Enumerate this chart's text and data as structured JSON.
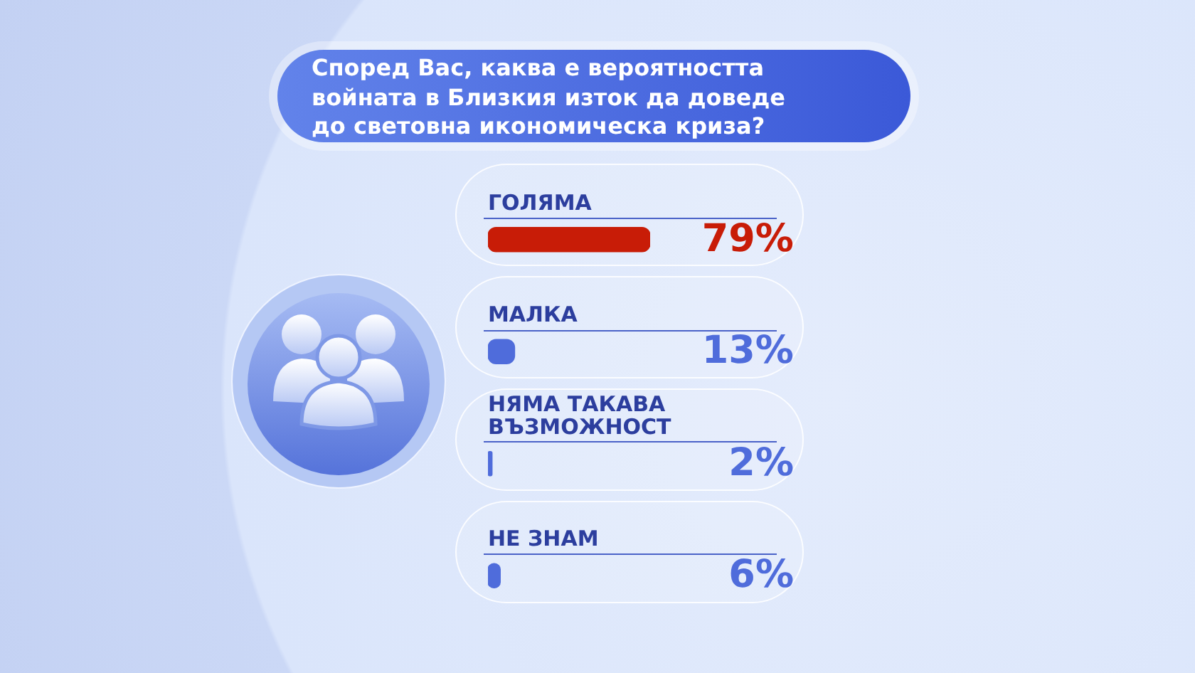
{
  "chart_data": {
    "type": "bar",
    "orientation": "horizontal",
    "title": "Според Вас, каква е вероятността войната в Близкия изток да доведе до световна икономическа криза?",
    "categories": [
      "ГОЛЯМА",
      "МАЛКА",
      "НЯМА ТАКАВА ВЪЗМОЖНОСТ",
      "НЕ ЗНАМ"
    ],
    "values": [
      79,
      13,
      2,
      6
    ],
    "colors": [
      "#c81c07",
      "#4f6cdb",
      "#4f6cdb",
      "#4f6cdb"
    ],
    "value_labels": [
      "79%",
      "13%",
      "2%",
      "6%"
    ]
  }
}
